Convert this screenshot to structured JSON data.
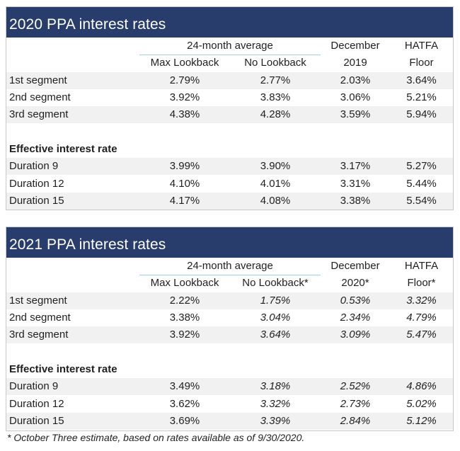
{
  "table2020": {
    "title": "2020 PPA interest rates",
    "header": {
      "group_label": "24-month average",
      "col1": "Max Lookback",
      "col2": "No Lookback",
      "col3_top": "December",
      "col3_bottom": "2019",
      "col4_top": "HATFA",
      "col4_bottom": "Floor"
    },
    "segments": [
      {
        "label": "1st segment",
        "v1": "2.79%",
        "v2": "2.77%",
        "v3": "2.03%",
        "v4": "3.64%"
      },
      {
        "label": "2nd segment",
        "v1": "3.92%",
        "v2": "3.83%",
        "v3": "3.06%",
        "v4": "5.21%"
      },
      {
        "label": "3rd segment",
        "v1": "4.38%",
        "v2": "4.28%",
        "v3": "3.59%",
        "v4": "5.94%"
      }
    ],
    "effective_label": "Effective interest rate",
    "durations": [
      {
        "label": "Duration 9",
        "v1": "3.99%",
        "v2": "3.90%",
        "v3": "3.17%",
        "v4": "5.27%"
      },
      {
        "label": "Duration 12",
        "v1": "4.10%",
        "v2": "4.01%",
        "v3": "3.31%",
        "v4": "5.44%"
      },
      {
        "label": "Duration 15",
        "v1": "4.17%",
        "v2": "4.08%",
        "v3": "3.38%",
        "v4": "5.54%"
      }
    ]
  },
  "table2021": {
    "title": "2021 PPA interest rates",
    "header": {
      "group_label": "24-month average",
      "col1": "Max Lookback",
      "col2": "No Lookback*",
      "col3_top": "December",
      "col3_bottom": "2020*",
      "col4_top": "HATFA",
      "col4_bottom": "Floor*"
    },
    "segments": [
      {
        "label": "1st segment",
        "v1": "2.22%",
        "v2": "1.75%",
        "v3": "0.53%",
        "v4": "3.32%"
      },
      {
        "label": "2nd segment",
        "v1": "3.38%",
        "v2": "3.04%",
        "v3": "2.34%",
        "v4": "4.79%"
      },
      {
        "label": "3rd segment",
        "v1": "3.92%",
        "v2": "3.64%",
        "v3": "3.09%",
        "v4": "5.47%"
      }
    ],
    "effective_label": "Effective interest rate",
    "durations": [
      {
        "label": "Duration 9",
        "v1": "3.49%",
        "v2": "3.18%",
        "v3": "2.52%",
        "v4": "4.86%"
      },
      {
        "label": "Duration 12",
        "v1": "3.62%",
        "v2": "3.32%",
        "v3": "2.73%",
        "v4": "5.02%"
      },
      {
        "label": "Duration 15",
        "v1": "3.69%",
        "v2": "3.39%",
        "v3": "2.84%",
        "v4": "5.12%"
      }
    ]
  },
  "footnote": "* October Three estimate, based on rates available as of 9/30/2020.",
  "colors": {
    "title_bar": "#293d6d",
    "row_shade": "#f1f1f1",
    "header_rule": "#9dd3df"
  }
}
